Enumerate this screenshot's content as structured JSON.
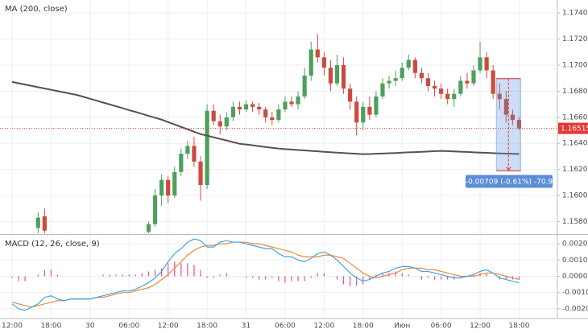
{
  "chart_data": [
    {
      "type": "candlestick",
      "title": "MA (200, close)",
      "open": [
        null,
        null,
        null,
        null,
        1.1575,
        1.1584,
        null,
        null,
        null,
        null,
        null,
        null,
        null,
        null,
        null,
        null,
        null,
        null,
        null,
        null,
        null,
        1.1572,
        1.1578,
        1.16,
        1.1612,
        1.16,
        1.1618,
        1.1632,
        1.1638,
        1.1626,
        1.1608,
        1.1665,
        1.1657,
        1.1653,
        1.166,
        1.1668,
        1.1666,
        1.167,
        1.1668,
        1.1666,
        1.166,
        1.1658,
        1.1666,
        1.1672,
        1.167,
        1.1676,
        1.1692,
        1.1712,
        1.1706,
        1.1698,
        1.1686,
        1.17,
        1.1682,
        1.1672,
        1.1656,
        1.1668,
        1.1662,
        1.1676,
        1.1686,
        1.1688,
        1.169,
        1.1698,
        1.1704,
        1.1694,
        1.169,
        1.1684,
        1.1682,
        1.1678,
        1.1674,
        1.1678,
        1.1688,
        1.1686,
        1.1696,
        1.1706,
        1.1696,
        1.1678,
        1.1674,
        1.1662,
        1.1658
      ],
      "high": [
        null,
        null,
        null,
        null,
        1.1587,
        1.159,
        null,
        null,
        null,
        null,
        null,
        null,
        null,
        null,
        null,
        null,
        null,
        null,
        null,
        null,
        null,
        1.158,
        1.1605,
        1.1616,
        1.1615,
        1.1622,
        1.1636,
        1.1642,
        1.1645,
        1.163,
        1.167,
        1.167,
        1.1662,
        1.1664,
        1.1672,
        1.1672,
        1.1673,
        1.1672,
        1.1671,
        1.1668,
        1.1664,
        1.167,
        1.1676,
        1.1676,
        1.168,
        1.1698,
        1.1718,
        1.1724,
        1.171,
        1.1704,
        1.1708,
        1.1706,
        1.1686,
        1.1676,
        1.1672,
        1.1676,
        1.168,
        1.169,
        1.1692,
        1.1696,
        1.1702,
        1.1708,
        1.1706,
        1.1698,
        1.1694,
        1.1688,
        1.1686,
        1.1682,
        1.1682,
        1.1692,
        1.1694,
        1.17,
        1.1718,
        1.171,
        1.17,
        1.1686,
        1.168,
        1.1666,
        1.166
      ],
      "low": [
        null,
        null,
        null,
        null,
        1.157,
        1.1568,
        null,
        null,
        null,
        null,
        null,
        null,
        null,
        null,
        null,
        null,
        null,
        null,
        null,
        null,
        null,
        1.1569,
        1.1576,
        1.1592,
        1.1594,
        1.1598,
        1.1615,
        1.1628,
        1.1622,
        1.1596,
        1.1605,
        1.1654,
        1.1647,
        1.165,
        1.1657,
        1.1662,
        1.1664,
        1.1664,
        1.1662,
        1.1656,
        1.1654,
        1.1656,
        1.1664,
        1.1668,
        1.1666,
        1.1674,
        1.1688,
        1.1702,
        1.1692,
        1.168,
        1.1684,
        1.1678,
        1.1666,
        1.1646,
        1.165,
        1.1658,
        1.166,
        1.1674,
        1.1682,
        1.1684,
        1.1688,
        1.1696,
        1.169,
        1.1686,
        1.168,
        1.1676,
        1.1674,
        1.167,
        1.1668,
        1.1676,
        1.1682,
        1.1684,
        1.1694,
        1.169,
        1.1674,
        1.1666,
        1.1656,
        1.1654,
        1.165
      ],
      "close": [
        null,
        null,
        null,
        null,
        1.1583,
        1.1573,
        null,
        null,
        null,
        null,
        null,
        null,
        null,
        null,
        null,
        null,
        null,
        null,
        null,
        null,
        null,
        1.1578,
        1.16,
        1.1612,
        1.16,
        1.1618,
        1.1632,
        1.1638,
        1.1626,
        1.1608,
        1.1665,
        1.1657,
        1.1653,
        1.166,
        1.1668,
        1.1666,
        1.167,
        1.1668,
        1.1666,
        1.166,
        1.1658,
        1.1666,
        1.1672,
        1.167,
        1.1676,
        1.1692,
        1.1712,
        1.1706,
        1.1698,
        1.1686,
        1.17,
        1.1682,
        1.1672,
        1.1656,
        1.1668,
        1.1662,
        1.1676,
        1.1686,
        1.1688,
        1.169,
        1.1698,
        1.1704,
        1.1694,
        1.169,
        1.1684,
        1.1682,
        1.1678,
        1.1674,
        1.1678,
        1.1688,
        1.1686,
        1.1696,
        1.1706,
        1.1696,
        1.1678,
        1.1674,
        1.1662,
        1.1658,
        1.16515
      ],
      "up_color": "#4e9f5e",
      "down_color": "#cf4a3e",
      "ma": {
        "color": "#5d4f4f",
        "values": [
          1.16871,
          1.16861,
          1.16851,
          1.16841,
          1.16831,
          1.16821,
          1.16811,
          1.16801,
          1.16791,
          1.16781,
          1.16771,
          1.16757,
          1.16742,
          1.16728,
          1.16713,
          1.16699,
          1.16684,
          1.1667,
          1.16655,
          1.16641,
          1.16626,
          1.16611,
          1.16597,
          1.16582,
          1.16563,
          1.16545,
          1.16526,
          1.16508,
          1.16489,
          1.16471,
          1.16459,
          1.16446,
          1.16434,
          1.16422,
          1.16409,
          1.16397,
          1.16391,
          1.16385,
          1.16378,
          1.16372,
          1.16366,
          1.1636,
          1.16356,
          1.16353,
          1.16349,
          1.16346,
          1.16342,
          1.16339,
          1.16335,
          1.16332,
          1.16329,
          1.16326,
          1.16323,
          1.1632,
          1.16317,
          1.16318,
          1.1632,
          1.16322,
          1.16324,
          1.16326,
          1.16329,
          1.16331,
          1.16333,
          1.16335,
          1.16337,
          1.1634,
          1.16342,
          1.1634,
          1.16338,
          1.16336,
          1.16334,
          1.16331,
          1.16329,
          1.16327,
          1.16325,
          1.16323,
          1.16321,
          1.1632,
          1.16318
        ]
      },
      "current_price": 1.16515,
      "current_price_color": "#e53935",
      "measure": {
        "from": 1.16897,
        "to": 1.16188,
        "start": 75,
        "end": 78,
        "label": "-0.00709 (-0.61%) -70.9",
        "color": "#5b8ed8"
      },
      "ylim": [
        1.1571,
        1.175
      ],
      "yticks": [
        {
          "value": 1.158,
          "label": "1.15800"
        },
        {
          "value": 1.16,
          "label": "1.16000"
        },
        {
          "value": 1.162,
          "label": "1.16200"
        },
        {
          "value": 1.164,
          "label": "1.16400"
        },
        {
          "value": 1.166,
          "label": "1.16600"
        },
        {
          "value": 1.168,
          "label": "1.16800"
        },
        {
          "value": 1.17,
          "label": "1.17000"
        },
        {
          "value": 1.172,
          "label": "1.17200"
        },
        {
          "value": 1.174,
          "label": "1.17400"
        }
      ],
      "grid": true
    },
    {
      "type": "macd",
      "title": "MACD (12, 26, close, 9)",
      "categories": [
        "12:00",
        null,
        null,
        null,
        null,
        null,
        "18:00",
        null,
        null,
        null,
        null,
        null,
        "30",
        null,
        null,
        null,
        null,
        null,
        "06:00",
        null,
        null,
        null,
        null,
        null,
        "12:00",
        null,
        null,
        null,
        null,
        null,
        "18:00",
        null,
        null,
        null,
        null,
        null,
        "31",
        null,
        null,
        null,
        null,
        null,
        "06:00",
        null,
        null,
        null,
        null,
        null,
        "12:00",
        null,
        null,
        null,
        null,
        null,
        "18:00",
        null,
        null,
        null,
        null,
        null,
        "Июн",
        null,
        null,
        null,
        null,
        null,
        "06:00",
        null,
        null,
        null,
        null,
        null,
        "12:00",
        null,
        null,
        null,
        null,
        null,
        "18:00"
      ],
      "macd": {
        "color": "#3fa4e6",
        "values": [
          -0.0017,
          -0.002,
          -0.0021,
          -0.0019,
          -0.0017,
          -0.0013,
          -0.0012,
          -0.0014,
          -0.0015,
          -0.0014,
          -0.0014,
          -0.0014,
          -0.0014,
          -0.0013,
          -0.0012,
          -0.0011,
          -0.001,
          -0.0009,
          -0.0009,
          -0.0008,
          -0.0006,
          -0.0004,
          -0.0001,
          0.0003,
          0.0009,
          0.0014,
          0.0017,
          0.0021,
          0.0023,
          0.0022,
          0.0018,
          0.0018,
          0.0021,
          0.0022,
          0.0021,
          0.0021,
          0.002,
          0.0019,
          0.0018,
          0.0017,
          0.0017,
          0.0014,
          0.0012,
          0.0012,
          0.001,
          0.0009,
          0.0011,
          0.0014,
          0.0015,
          0.0013,
          0.001,
          0.0006,
          0.0002,
          -0.0001,
          -0.0003,
          -0.0002,
          0,
          0.0002,
          0.0003,
          0.0005,
          0.0006,
          0.0006,
          0.0005,
          0.0003,
          0.0003,
          0.0002,
          0.0001,
          0,
          -0.0001,
          -0.0001,
          0,
          0.0001,
          0.0003,
          0.0004,
          0.0002,
          -0.0001,
          -0.0002,
          -0.0003,
          -0.0004
        ]
      },
      "signal": {
        "color": "#f0883a",
        "values": [
          -0.0016,
          -0.0017,
          -0.0018,
          -0.0019,
          -0.0018,
          -0.0017,
          -0.0016,
          -0.0015,
          -0.0015,
          -0.0014,
          -0.0014,
          -0.0014,
          -0.0014,
          -0.0013,
          -0.0013,
          -0.0012,
          -0.0011,
          -0.001,
          -0.001,
          -0.0009,
          -0.0008,
          -0.0007,
          -0.0005,
          -0.0002,
          0.0001,
          0.0005,
          0.0009,
          0.0013,
          0.0016,
          0.0018,
          0.0019,
          0.0019,
          0.002,
          0.002,
          0.0021,
          0.0021,
          0.0021,
          0.002,
          0.002,
          0.0019,
          0.0018,
          0.0017,
          0.0016,
          0.0015,
          0.0013,
          0.0012,
          0.0012,
          0.0012,
          0.0013,
          0.0013,
          0.0012,
          0.0011,
          0.0008,
          0.0005,
          0.0002,
          0,
          -0.0001,
          0,
          0.0001,
          0.0002,
          0.0004,
          0.0005,
          0.0005,
          0.0005,
          0.0004,
          0.0004,
          0.0003,
          0.0002,
          0.0001,
          0,
          0,
          0,
          0.0001,
          0.0002,
          0.0002,
          0.0001,
          0,
          -0.0001,
          -0.0002
        ]
      },
      "histogram": {
        "color": "#e04fa0",
        "values": [
          -0.0001,
          -0.0003,
          -0.0003,
          0,
          0.0001,
          0.0004,
          0.0004,
          0.0001,
          0,
          0,
          0,
          0,
          0,
          0,
          0.0001,
          0.0001,
          0.0001,
          0.0001,
          0.0001,
          0.0001,
          0.0002,
          0.0003,
          0.0004,
          0.0005,
          0.0008,
          0.0009,
          0.0008,
          0.0008,
          0.0007,
          0.0004,
          -0.0001,
          -0.0001,
          0.0001,
          0.0002,
          0,
          0,
          -0.0001,
          -0.0001,
          -0.0002,
          -0.0002,
          -0.0001,
          -0.0003,
          -0.0004,
          -0.0003,
          -0.0003,
          -0.0003,
          -0.0001,
          0.0002,
          0.0002,
          0,
          -0.0002,
          -0.0005,
          -0.0006,
          -0.0006,
          -0.0005,
          -0.0002,
          0.0001,
          0.0002,
          0.0002,
          0.0003,
          0.0002,
          0.0001,
          0,
          -0.0002,
          -0.0001,
          -0.0002,
          -0.0002,
          -0.0002,
          -0.0002,
          -0.0001,
          0,
          0.0001,
          0.0002,
          0.0002,
          0,
          -0.0002,
          -0.0002,
          -0.0002,
          -0.0002
        ]
      },
      "ylim": [
        -0.0026,
        0.0025
      ],
      "yticks": [
        {
          "value": -0.002,
          "label": "-0.0020"
        },
        {
          "value": -0.001,
          "label": "-0.0010"
        },
        {
          "value": 0,
          "label": "0.0000"
        },
        {
          "value": 0.001,
          "label": "0.0010"
        },
        {
          "value": 0.002,
          "label": "0.0020"
        }
      ],
      "grid": true
    }
  ]
}
